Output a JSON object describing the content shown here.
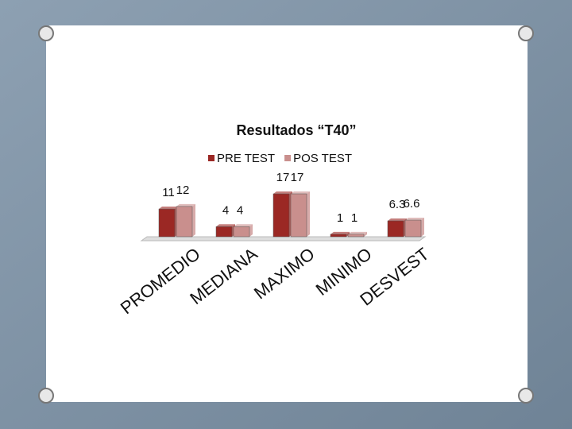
{
  "chart_data": {
    "type": "bar",
    "title": "Resultados “T40”",
    "categories": [
      "PROMEDIO",
      "MEDIANA",
      "MAXIMO",
      "MINIMO",
      "DESVEST"
    ],
    "series": [
      {
        "name": "PRE TEST",
        "color": "#9b2824",
        "values": [
          11,
          4,
          17,
          1,
          6.3
        ]
      },
      {
        "name": "POS TEST",
        "color": "#c98f8d",
        "values": [
          12,
          4,
          17,
          1,
          6.6
        ]
      }
    ],
    "legend": "top"
  }
}
